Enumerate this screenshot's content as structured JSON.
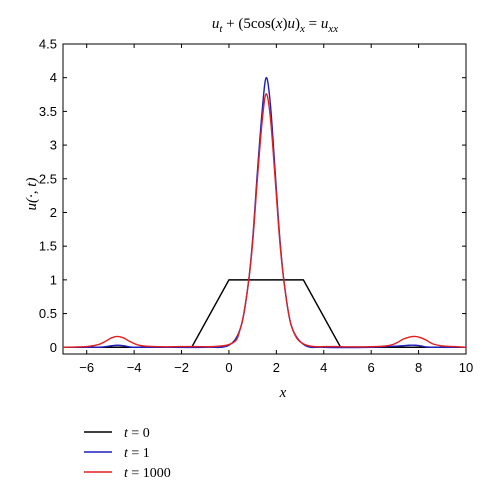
{
  "chart_data": {
    "type": "line",
    "title": "",
    "xlabel": "x",
    "ylabel": "u(·, t)",
    "xlim": [
      -7,
      10
    ],
    "ylim": [
      -0.1,
      4.5
    ],
    "x_ticks": [
      -6,
      -4,
      -2,
      0,
      2,
      4,
      6,
      8,
      10
    ],
    "y_ticks": [
      0,
      0.5,
      1,
      1.5,
      2,
      2.5,
      3,
      3.5,
      4,
      4.5
    ],
    "x_tick_labels": [
      "−6",
      "−4",
      "−2",
      "0",
      "2",
      "4",
      "6",
      "8",
      "10"
    ],
    "y_tick_labels": [
      "0",
      "0.5",
      "1",
      "1.5",
      "2",
      "2.5",
      "3",
      "3.5",
      "4",
      "4.5"
    ],
    "grid": false,
    "legend_position": "below-left",
    "series": [
      {
        "name": "t = 0",
        "color": "#000000",
        "x": [
          -7,
          -1.57,
          0,
          3.14,
          4.71,
          10
        ],
        "y": [
          0,
          0,
          1,
          1,
          0,
          0
        ]
      },
      {
        "name": "t = 1",
        "color": "#1f1fbf",
        "x": [
          -7,
          -5.5,
          -5.0,
          -4.71,
          -4.4,
          -4.0,
          -3.0,
          -1.0,
          0.0,
          0.5,
          0.8,
          1.0,
          1.2,
          1.4,
          1.57,
          1.75,
          1.95,
          2.15,
          2.35,
          2.65,
          3.2,
          4.0,
          6.0,
          7.2,
          7.6,
          7.85,
          8.1,
          8.5,
          10
        ],
        "y": [
          0,
          0,
          0.02,
          0.03,
          0.02,
          0,
          0,
          0,
          0.03,
          0.3,
          0.9,
          1.6,
          2.6,
          3.5,
          4.0,
          3.6,
          2.6,
          1.6,
          0.9,
          0.3,
          0.03,
          0,
          0,
          0.02,
          0.03,
          0.03,
          0.02,
          0,
          0
        ]
      },
      {
        "name": "t = 1000",
        "color": "#e02020",
        "x": [
          -7,
          -6.0,
          -5.5,
          -5.2,
          -4.95,
          -4.71,
          -4.45,
          -4.2,
          -3.8,
          -3.2,
          -2.0,
          0.0,
          0.5,
          0.8,
          1.0,
          1.2,
          1.4,
          1.57,
          1.75,
          1.95,
          2.15,
          2.35,
          2.65,
          3.2,
          4.5,
          6.2,
          6.8,
          7.1,
          7.35,
          7.6,
          7.85,
          8.1,
          8.35,
          8.6,
          9.0,
          9.5,
          10
        ],
        "y": [
          0,
          0.01,
          0.04,
          0.09,
          0.14,
          0.16,
          0.14,
          0.09,
          0.03,
          0.01,
          0.01,
          0.04,
          0.3,
          0.9,
          1.55,
          2.5,
          3.35,
          3.76,
          3.4,
          2.5,
          1.55,
          0.9,
          0.3,
          0.04,
          0.01,
          0.01,
          0.03,
          0.07,
          0.12,
          0.15,
          0.16,
          0.14,
          0.1,
          0.05,
          0.02,
          0.01,
          0
        ]
      }
    ]
  }
}
